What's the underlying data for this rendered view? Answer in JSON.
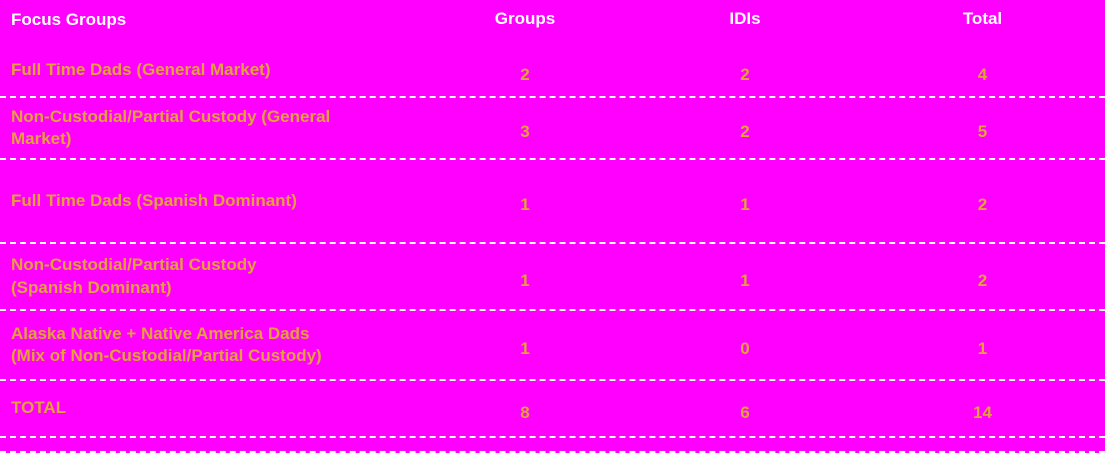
{
  "table": {
    "background_color": "#FF00FF",
    "header_text_color": "#FFFFFF",
    "body_text_color": "#E2A13A",
    "divider_style": "white-dashed",
    "headers": [
      "Focus Groups",
      "Groups",
      "IDIs",
      "Total"
    ],
    "rows": [
      {
        "label": "Full Time Dads (General Market)",
        "groups": "2",
        "idis": "2",
        "total": "4"
      },
      {
        "label": "Non-Custodial/Partial Custody (General\nMarket)",
        "groups": "3",
        "idis": "2",
        "total": "5"
      },
      {
        "label": "Full Time Dads (Spanish Dominant)",
        "groups": "1",
        "idis": "1",
        "total": "2"
      },
      {
        "label": "Non-Custodial/Partial Custody\n(Spanish Dominant)",
        "groups": "1",
        "idis": "1",
        "total": "2"
      },
      {
        "label": "Alaska Native + Native America Dads\n(Mix of Non-Custodial/Partial Custody)",
        "groups": "1",
        "idis": "0",
        "total": "1"
      },
      {
        "label": "TOTAL",
        "groups": "8",
        "idis": "6",
        "total": "14"
      }
    ]
  }
}
